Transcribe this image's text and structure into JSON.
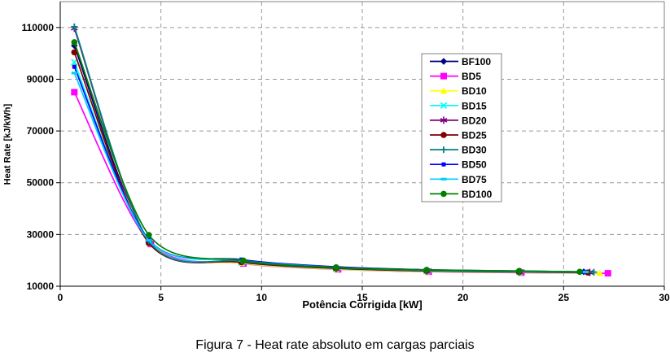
{
  "figure": {
    "caption": "Figura 7 - Heat rate absoluto em cargas parciais"
  },
  "chart_data": {
    "type": "line",
    "title": "",
    "xlabel": "Potência Corrigida [kW]",
    "ylabel": "Heat Rate [kJ/kWh]",
    "xlim": [
      0,
      30
    ],
    "ylim": [
      10000,
      120000
    ],
    "x_ticks": [
      0,
      5,
      10,
      15,
      20,
      25,
      30
    ],
    "x_tick_labels": [
      "0",
      "5",
      "10",
      "15",
      "20",
      "25",
      "30"
    ],
    "y_ticks": [
      10000,
      30000,
      50000,
      70000,
      90000,
      110000
    ],
    "y_tick_labels": [
      "10000",
      "30000",
      "50000",
      "70000",
      "90000",
      "110000"
    ],
    "grid": "dashed",
    "grid_color": "#999999",
    "plot_border_color": "#808080",
    "axis_color": "#000000",
    "legend_position": "upper-right-inside",
    "series": [
      {
        "name": "BF100",
        "color": "#000080",
        "marker": "diamond",
        "points": [
          [
            0.7,
            103000
          ],
          [
            4.4,
            27200
          ],
          [
            9.0,
            19400
          ],
          [
            13.7,
            17000
          ],
          [
            18.2,
            16000
          ],
          [
            22.8,
            15700
          ],
          [
            26.0,
            15550
          ]
        ]
      },
      {
        "name": "BD5",
        "color": "#FF00FF",
        "marker": "square",
        "points": [
          [
            0.7,
            85000
          ],
          [
            4.5,
            26300
          ],
          [
            9.1,
            18800
          ],
          [
            13.8,
            16500
          ],
          [
            18.3,
            15600
          ],
          [
            22.9,
            15250
          ],
          [
            27.2,
            15000
          ]
        ]
      },
      {
        "name": "BD10",
        "color": "#FFFF00",
        "marker": "triangle",
        "points": [
          [
            0.7,
            96000
          ],
          [
            4.5,
            26600
          ],
          [
            9.0,
            19000
          ],
          [
            13.7,
            16600
          ],
          [
            18.2,
            15700
          ],
          [
            22.8,
            15350
          ],
          [
            26.8,
            15100
          ]
        ]
      },
      {
        "name": "BD15",
        "color": "#00FFFF",
        "marker": "x",
        "points": [
          [
            0.7,
            96600
          ],
          [
            4.4,
            26900
          ],
          [
            9.0,
            19200
          ],
          [
            13.7,
            16800
          ],
          [
            18.2,
            15850
          ],
          [
            22.8,
            15450
          ],
          [
            26.4,
            15200
          ]
        ]
      },
      {
        "name": "BD20",
        "color": "#800080",
        "marker": "asterisk",
        "points": [
          [
            0.7,
            109700
          ],
          [
            4.4,
            27300
          ],
          [
            9.0,
            19500
          ],
          [
            13.7,
            17000
          ],
          [
            18.2,
            16000
          ],
          [
            22.8,
            15600
          ],
          [
            26.3,
            15350
          ]
        ]
      },
      {
        "name": "BD25",
        "color": "#800000",
        "marker": "circle",
        "points": [
          [
            0.7,
            100400
          ],
          [
            4.4,
            26700
          ],
          [
            9.0,
            19300
          ],
          [
            13.7,
            16900
          ],
          [
            18.2,
            15900
          ],
          [
            22.8,
            15500
          ],
          [
            26.2,
            15300
          ]
        ]
      },
      {
        "name": "BD30",
        "color": "#008080",
        "marker": "plus",
        "points": [
          [
            0.7,
            110300
          ],
          [
            4.4,
            27500
          ],
          [
            9.0,
            19700
          ],
          [
            13.7,
            17200
          ],
          [
            18.2,
            16100
          ],
          [
            22.8,
            15700
          ],
          [
            26.5,
            15450
          ]
        ]
      },
      {
        "name": "BD50",
        "color": "#0000FF",
        "marker": "square-small",
        "points": [
          [
            0.7,
            94800
          ],
          [
            4.4,
            27900
          ],
          [
            9.0,
            20300
          ],
          [
            13.7,
            17500
          ],
          [
            18.2,
            16350
          ],
          [
            22.8,
            15850
          ],
          [
            26.0,
            15550
          ]
        ]
      },
      {
        "name": "BD75",
        "color": "#00CCFF",
        "marker": "dash",
        "points": [
          [
            0.7,
            92400
          ],
          [
            4.4,
            27700
          ],
          [
            9.0,
            20000
          ],
          [
            13.7,
            17300
          ],
          [
            18.2,
            16250
          ],
          [
            22.8,
            15800
          ],
          [
            26.1,
            15500
          ]
        ]
      },
      {
        "name": "BD100",
        "color": "#008000",
        "marker": "circle",
        "points": [
          [
            0.7,
            104300
          ],
          [
            4.4,
            29800
          ],
          [
            9.1,
            19900
          ],
          [
            13.7,
            17250
          ],
          [
            18.2,
            16300
          ],
          [
            22.8,
            15900
          ],
          [
            25.8,
            15550
          ]
        ]
      }
    ]
  }
}
